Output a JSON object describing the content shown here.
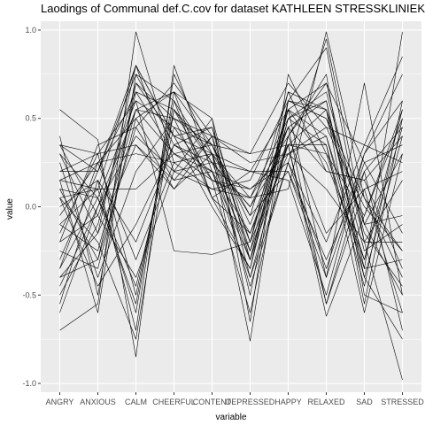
{
  "chart_data": {
    "type": "line",
    "title": "Laodings of Communal def.C.cov for dataset KATHLEEN STRESSKLINIEK",
    "xlabel": "variable",
    "ylabel": "value",
    "categories": [
      "ANGRY",
      "ANXIOUS",
      "CALM",
      "CHEERFUL",
      "CONTENT",
      "DEPRESSED",
      "HAPPY",
      "RELAXED",
      "SAD",
      "STRESSED"
    ],
    "ylim": [
      -1.05,
      1.05
    ],
    "yticks": [
      -1.0,
      -0.5,
      0.0,
      0.5,
      1.0
    ],
    "ytick_labels": [
      "-1.0",
      "-0.5",
      "0.0",
      "0.5",
      "1.0"
    ],
    "grid": true,
    "panel_color": "#ebebeb",
    "grid_color": "#ffffff",
    "line_color": "#000000",
    "series": [
      {
        "values": [
          -0.7,
          -0.55,
          0.99,
          0.25,
          0.3,
          0.05,
          0.1,
          0.99,
          0.05,
          -0.25
        ]
      },
      {
        "values": [
          0.55,
          0.38,
          -0.85,
          0.8,
          0.2,
          -0.3,
          0.35,
          -0.55,
          0.1,
          -0.6
        ]
      },
      {
        "values": [
          0.35,
          0.2,
          0.8,
          0.2,
          0.5,
          -0.65,
          0.75,
          0.3,
          -0.35,
          0.99
        ]
      },
      {
        "values": [
          -0.55,
          0.15,
          -0.7,
          0.75,
          0.3,
          -0.76,
          0.6,
          0.9,
          -0.2,
          -0.98
        ]
      },
      {
        "values": [
          0.15,
          -0.6,
          0.75,
          0.6,
          0.05,
          0.2,
          0.55,
          -0.4,
          0.7,
          -0.5
        ]
      },
      {
        "values": [
          -0.2,
          0.35,
          0.45,
          0.1,
          0.4,
          0.3,
          0.7,
          0.45,
          0.35,
          0.85
        ]
      },
      {
        "values": [
          0.4,
          -0.5,
          0.7,
          0.5,
          0.05,
          -0.35,
          0.6,
          0.55,
          -0.55,
          0.5
        ]
      },
      {
        "values": [
          0.05,
          0.1,
          -0.6,
          0.65,
          0.35,
          0.3,
          0.35,
          -0.62,
          -0.05,
          0.55
        ]
      },
      {
        "values": [
          -0.35,
          0.05,
          0.6,
          -0.25,
          -0.27,
          -0.2,
          0.65,
          0.2,
          0.15,
          -0.35
        ]
      },
      {
        "values": [
          0.3,
          -0.15,
          0.8,
          0.4,
          0.45,
          -0.4,
          0.25,
          0.95,
          -0.1,
          0.3
        ]
      },
      {
        "values": [
          -0.1,
          -0.25,
          0.55,
          0.3,
          0.15,
          0.05,
          0.4,
          0.7,
          0.25,
          -0.15
        ]
      },
      {
        "values": [
          0.2,
          0.3,
          0.35,
          0.1,
          0.3,
          0.2,
          0.15,
          -0.5,
          0.3,
          0.75
        ]
      },
      {
        "values": [
          -0.4,
          -0.3,
          0.65,
          0.55,
          0.25,
          -0.25,
          0.55,
          0.4,
          -0.3,
          0.45
        ]
      },
      {
        "values": [
          0.1,
          0.05,
          -0.45,
          0.45,
          0.35,
          -0.05,
          0.2,
          -0.3,
          0.2,
          -0.7
        ]
      },
      {
        "values": [
          -0.3,
          0.2,
          0.75,
          0.35,
          0.2,
          -0.15,
          0.45,
          0.6,
          -0.4,
          0.4
        ]
      },
      {
        "values": [
          0.25,
          -0.4,
          0.2,
          0.5,
          0.4,
          0.25,
          0.3,
          0.1,
          -0.2,
          0.15
        ]
      },
      {
        "values": [
          -0.05,
          0.25,
          -0.3,
          0.25,
          0.1,
          0.15,
          0.6,
          0.5,
          0.05,
          -0.4
        ]
      },
      {
        "values": [
          0.35,
          -0.05,
          0.55,
          0.65,
          0.5,
          -0.3,
          0.5,
          0.35,
          -0.45,
          0.6
        ]
      },
      {
        "values": [
          -0.45,
          0.0,
          0.4,
          0.2,
          0.25,
          0.0,
          0.35,
          0.55,
          -0.1,
          -0.05
        ]
      },
      {
        "values": [
          0.05,
          -0.2,
          -0.75,
          0.55,
          0.3,
          -0.45,
          0.25,
          -0.2,
          0.35,
          0.25
        ]
      },
      {
        "values": [
          -0.15,
          0.3,
          0.6,
          0.45,
          0.15,
          -0.6,
          0.4,
          0.75,
          -0.5,
          -0.6
        ]
      },
      {
        "values": [
          0.15,
          0.1,
          0.1,
          0.3,
          0.35,
          -0.1,
          0.45,
          -0.55,
          0.2,
          0.45
        ]
      },
      {
        "values": [
          -0.25,
          -0.35,
          0.5,
          0.15,
          0.2,
          0.1,
          0.3,
          0.45,
          0.0,
          -0.25
        ]
      },
      {
        "values": [
          0.0,
          0.15,
          -0.2,
          0.35,
          0.45,
          -0.2,
          0.55,
          0.25,
          -0.3,
          0.55
        ]
      },
      {
        "values": [
          -0.5,
          -0.1,
          0.7,
          0.4,
          0.0,
          -0.35,
          0.5,
          0.65,
          -0.15,
          -0.45
        ]
      },
      {
        "values": [
          0.3,
          0.05,
          -0.55,
          0.6,
          0.25,
          0.2,
          0.2,
          -0.4,
          0.25,
          0.35
        ]
      },
      {
        "values": [
          -0.35,
          0.25,
          0.3,
          0.25,
          0.3,
          -0.05,
          0.65,
          0.55,
          -0.25,
          -0.1
        ]
      },
      {
        "values": [
          0.1,
          -0.3,
          0.45,
          0.7,
          0.4,
          -0.25,
          0.35,
          0.3,
          -0.05,
          0.5
        ]
      },
      {
        "values": [
          -0.2,
          -0.05,
          -0.4,
          0.2,
          0.1,
          0.05,
          0.5,
          0.6,
          -0.35,
          -0.3
        ]
      },
      {
        "values": [
          0.2,
          0.2,
          0.65,
          0.3,
          0.2,
          -0.4,
          0.4,
          -0.15,
          0.1,
          0.2
        ]
      },
      {
        "values": [
          -0.6,
          0.0,
          0.55,
          0.5,
          0.35,
          -0.2,
          0.3,
          0.4,
          -0.4,
          -0.75
        ]
      },
      {
        "values": [
          0.05,
          -0.45,
          -0.1,
          0.35,
          0.25,
          0.0,
          0.45,
          0.2,
          0.15,
          0.4
        ]
      },
      {
        "values": [
          -0.1,
          0.1,
          0.8,
          0.4,
          0.3,
          -0.3,
          0.55,
          0.7,
          -0.2,
          -0.2
        ]
      },
      {
        "values": [
          0.35,
          0.3,
          -0.5,
          0.55,
          0.15,
          0.1,
          0.25,
          -0.35,
          0.3,
          0.6
        ]
      },
      {
        "values": [
          -0.4,
          -0.15,
          0.35,
          0.15,
          0.4,
          -0.5,
          0.6,
          0.5,
          -0.1,
          -0.5
        ]
      },
      {
        "values": [
          0.15,
          0.25,
          0.5,
          0.65,
          0.05,
          -0.15,
          0.35,
          0.35,
          -0.6,
          0.3
        ]
      }
    ]
  }
}
